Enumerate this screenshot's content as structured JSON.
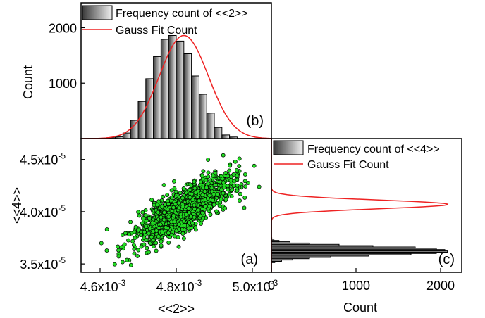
{
  "colors": {
    "scatter_fill": "#22dd22",
    "scatter_stroke": "#000000",
    "fit_line": "#ee2222",
    "bar_dark": "#3a3a3a",
    "bar_light": "#f2f2f2"
  },
  "chart_data": [
    {
      "id": "a",
      "type": "scatter",
      "panel_label": "(a)",
      "xlabel": "<<2>>",
      "ylabel": "<<4>>",
      "xlim": [
        0.00455,
        0.00505
      ],
      "ylim": [
        3.42e-05,
        4.7e-05
      ],
      "xticks": [
        {
          "value": 0.0046,
          "mantissa": "4.6x10",
          "exp": "-3"
        },
        {
          "value": 0.0048,
          "mantissa": "4.8x10",
          "exp": "-3"
        },
        {
          "value": 0.005,
          "mantissa": "5.0x10",
          "exp": "-3"
        }
      ],
      "yticks": [
        {
          "value": 3.5e-05,
          "mantissa": "3.5x10",
          "exp": "-5"
        },
        {
          "value": 4e-05,
          "mantissa": "4.0x10",
          "exp": "-5"
        },
        {
          "value": 4.5e-05,
          "mantissa": "4.5x10",
          "exp": "-5"
        }
      ],
      "point_cloud": {
        "n": 1500,
        "x_mean": 0.00482,
        "x_sd": 6.2e-05,
        "y_mean": 4.02e-05,
        "y_sd": 1.55e-06,
        "correlation": 0.78
      }
    },
    {
      "id": "b",
      "type": "bar",
      "panel_label": "(b)",
      "ylabel": "Count",
      "xlim": [
        0.00455,
        0.00505
      ],
      "ylim": [
        0,
        2450
      ],
      "yticks": [
        1000,
        2000
      ],
      "bins": {
        "start": 0.00462,
        "width": 2e-05
      },
      "values": [
        15,
        30,
        100,
        330,
        670,
        1080,
        1480,
        1790,
        1860,
        1760,
        1530,
        1130,
        800,
        460,
        200,
        65,
        28
      ],
      "legend": [
        {
          "kind": "bar",
          "label": "Frequency count of <<2>>"
        },
        {
          "kind": "line",
          "label": "Gauss Fit Count"
        }
      ],
      "fit": {
        "center": 0.00482,
        "sigma": 6.45e-05,
        "peak": 1860
      }
    },
    {
      "id": "c",
      "type": "bar",
      "orientation": "horizontal",
      "panel_label": "(c)",
      "xlabel": "Count",
      "xlim": [
        0,
        2250
      ],
      "xticks": [
        0,
        1000,
        2000
      ],
      "ylim": [
        3.42e-05,
        4.7e-05
      ],
      "bins": {
        "start": 3.5e-05,
        "width": 1.25e-07
      },
      "values": [
        0,
        40,
        120,
        250,
        450,
        700,
        1150,
        1650,
        1950,
        2080,
        2050,
        1950,
        1700,
        1200,
        800,
        450,
        220,
        90,
        30,
        5
      ],
      "legend": [
        {
          "kind": "bar",
          "label": "Frequency count of <<4>>"
        },
        {
          "kind": "line",
          "label": "Gauss Fit Count"
        }
      ],
      "fit": {
        "center": 4.07e-05,
        "sigma": 4.2e-07,
        "peak": 2090
      }
    }
  ]
}
